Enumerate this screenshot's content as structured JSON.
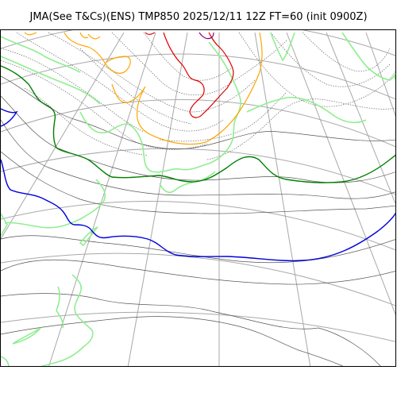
{
  "header": {
    "title": "JMA(See T&Cs)(ENS) TMP850 2025/12/11 12Z FT=60 (init 0900Z)"
  },
  "map": {
    "colors": {
      "graticule": "#a8a8a8",
      "isotherm_thin": "#555555",
      "isotherm_dotted": "#666666",
      "coastline": "#90ee90",
      "iso_0c": "#008000",
      "iso_minus": "#0000dd",
      "iso_warm": "#ffa500",
      "iso_hot": "#dd0000",
      "iso_purple": "#800080"
    }
  }
}
